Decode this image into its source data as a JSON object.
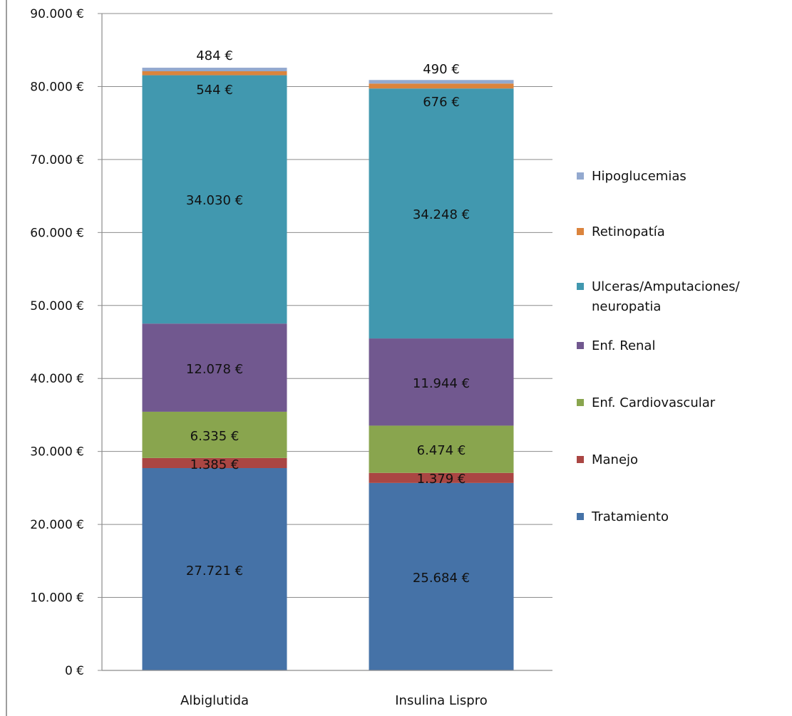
{
  "chart_data": {
    "type": "bar",
    "stacked": true,
    "categories": [
      "Albiglutida",
      "Insulina Lispro"
    ],
    "series": [
      {
        "name": "Tratamiento",
        "color": "#4572A7",
        "values": [
          27721,
          25684
        ],
        "labels": [
          "27.721 €",
          "25.684 €"
        ]
      },
      {
        "name": "Manejo",
        "color": "#AA4643",
        "values": [
          1385,
          1379
        ],
        "labels": [
          "1.385 €",
          "1.379 €"
        ]
      },
      {
        "name": "Enf. Cardiovascular",
        "color": "#89A54E",
        "values": [
          6335,
          6474
        ],
        "labels": [
          "6.335 €",
          "6.474 €"
        ]
      },
      {
        "name": "Enf. Renal",
        "color": "#71588F",
        "values": [
          12078,
          11944
        ],
        "labels": [
          "12.078 €",
          "11.944 €"
        ]
      },
      {
        "name": "Ulceras/Amputaciones/ neuropatia",
        "color": "#4198AF",
        "values": [
          34030,
          34248
        ],
        "labels": [
          "34.030 €",
          "34.248 €"
        ]
      },
      {
        "name": "Retinopatía",
        "color": "#DB843D",
        "values": [
          544,
          676
        ],
        "labels": [
          "544 €",
          "676 €"
        ]
      },
      {
        "name": "Hipoglucemias",
        "color": "#93A9CF",
        "values": [
          484,
          490
        ],
        "labels": [
          "484 €",
          "490 €"
        ]
      }
    ],
    "ylim": [
      0,
      90000
    ],
    "yticks": [
      0,
      10000,
      20000,
      30000,
      40000,
      50000,
      60000,
      70000,
      80000,
      90000
    ],
    "ytick_labels": [
      "0 €",
      "10.000 €",
      "20.000 €",
      "30.000 €",
      "40.000 €",
      "50.000 €",
      "60.000 €",
      "70.000 €",
      "80.000 €",
      "90.000 €"
    ],
    "grid": true,
    "legend_position": "right",
    "title": "",
    "xlabel": "",
    "ylabel": ""
  }
}
